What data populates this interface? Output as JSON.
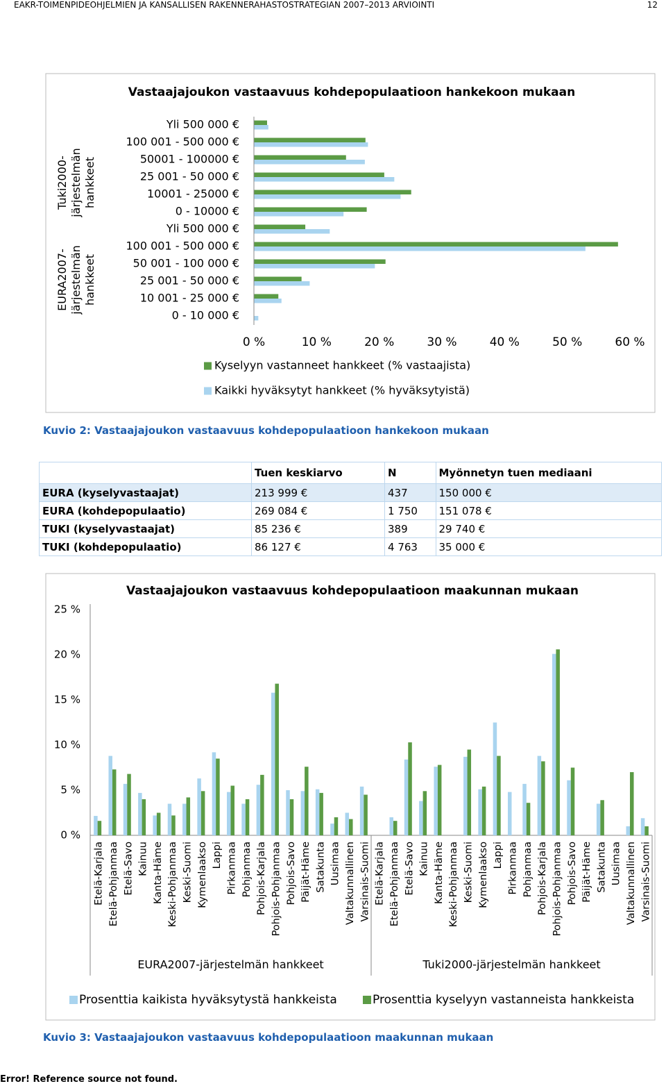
{
  "header": {
    "title": "EAKR-TOIMENPIDEOHJELMIEN JA KANSALLISEN RAKENNERAHASTOSTRATEGIAN 2007–2013 ARVIOINTI",
    "page": "12"
  },
  "chart_data": [
    {
      "type": "bar",
      "orientation": "horizontal",
      "title": "Vastaajajoukon vastaavuus kohdepopulaatioon hankekoon mukaan",
      "groups": [
        {
          "name": "Tuki2000-järjestelmän hankkeet",
          "categories": [
            "Yli 500 000 €",
            "100 001 - 500 000 €",
            "50001 - 100000 €",
            "25 001 - 50 000 €",
            "10001 - 25000 €",
            "0 - 10000 €"
          ]
        },
        {
          "name": "EURA2007-järjestelmän hankkeet",
          "categories": [
            "Yli 500 000 €",
            "100 001 - 500 000 €",
            "50 001 - 100 000 €",
            "25 001 - 50 000 €",
            "10 001 - 25 000 €",
            "0 - 10 000 €"
          ]
        }
      ],
      "series": [
        {
          "name": "Kyselyyn vastanneet hankkeet (% vastaajista)",
          "color": "#5b9b45",
          "values": [
            2.1,
            17.8,
            14.7,
            20.8,
            25.1,
            18.0,
            8.2,
            58.1,
            21.0,
            7.6,
            3.9,
            0
          ]
        },
        {
          "name": "Kaikki hyväksytyt hankkeet (% hyväksytyistä)",
          "color": "#a9d4ef",
          "values": [
            2.3,
            18.2,
            17.7,
            22.4,
            23.4,
            14.3,
            12.1,
            52.9,
            19.3,
            8.9,
            4.4,
            0.7
          ]
        }
      ],
      "xlim": [
        0,
        60
      ],
      "xticks": [
        {
          "value": 0,
          "label": "0 %"
        },
        {
          "value": 10,
          "label": "10 %"
        },
        {
          "value": 20,
          "label": "20 %"
        },
        {
          "value": 30,
          "label": "30 %"
        },
        {
          "value": 40,
          "label": "40 %"
        },
        {
          "value": 50,
          "label": "50 %"
        },
        {
          "value": 60,
          "label": "60 %"
        }
      ],
      "legend": "bottom"
    },
    {
      "type": "bar",
      "title": "Vastaajajoukon vastaavuus kohdepopulaatioon maakunnan mukaan",
      "groups": [
        {
          "name": "EURA2007-järjestelmän hankkeet",
          "categories": [
            "Etelä-Karjala",
            "Etelä-Pohjanmaa",
            "Etelä-Savo",
            "Kainuu",
            "Kanta-Häme",
            "Keski-Pohjanmaa",
            "Keski-Suomi",
            "Kymenlaakso",
            "Lappi",
            "Pirkanmaa",
            "Pohjanmaa",
            "Pohjois-Karjala",
            "Pohjois-Pohjanmaa",
            "Pohjois-Savo",
            "Päijät-Häme",
            "Satakunta",
            "Uusimaa",
            "Valtakunnallinen",
            "Varsinais-Suomi"
          ]
        },
        {
          "name": "Tuki2000-järjestelmän hankkeet",
          "categories": [
            "Etelä-Karjala",
            "Etelä-Pohjanmaa",
            "Etelä-Savo",
            "Kainuu",
            "Kanta-Häme",
            "Keski-Pohjanmaa",
            "Keski-Suomi",
            "Kymenlaakso",
            "Lappi",
            "Pirkanmaa",
            "Pohjanmaa",
            "Pohjois-Karjala",
            "Pohjois-Pohjanmaa",
            "Pohjois-Savo",
            "Päijät-Häme",
            "Satakunta",
            "Uusimaa",
            "Valtakunnallinen",
            "Varsinais-Suomi"
          ]
        }
      ],
      "series": [
        {
          "name": "Prosenttia kaikista hyväksytystä hankkeista",
          "color": "#a9d4ef",
          "values": [
            2.15,
            8.8,
            5.7,
            4.7,
            2.2,
            3.5,
            3.5,
            6.3,
            9.2,
            4.8,
            3.5,
            5.6,
            15.8,
            5.0,
            4.9,
            5.1,
            1.3,
            2.5,
            5.4,
            null,
            2.0,
            8.4,
            3.8,
            7.6,
            null,
            8.7,
            5.1,
            12.5,
            4.8,
            5.7,
            8.8,
            20.1,
            6.1,
            null,
            3.5,
            null,
            1.0,
            1.9
          ]
        },
        {
          "name": "Prosenttia kyselyyn vastanneista hankkeista",
          "color": "#5b9b45",
          "values": [
            1.6,
            7.3,
            6.8,
            4.0,
            2.5,
            2.2,
            4.2,
            4.9,
            8.5,
            5.5,
            4.0,
            6.7,
            16.8,
            4.0,
            7.6,
            4.7,
            2.0,
            1.8,
            4.5,
            null,
            1.6,
            10.3,
            4.9,
            7.8,
            null,
            9.5,
            5.4,
            8.8,
            null,
            3.6,
            8.2,
            20.6,
            7.5,
            null,
            3.9,
            null,
            7.0,
            1.0
          ]
        }
      ],
      "ylim": [
        0,
        25
      ],
      "yticks": [
        {
          "value": 0,
          "label": "0 %"
        },
        {
          "value": 5,
          "label": "5 %"
        },
        {
          "value": 10,
          "label": "10 %"
        },
        {
          "value": 15,
          "label": "15 %"
        },
        {
          "value": 20,
          "label": "20 %"
        },
        {
          "value": 25,
          "label": "25 %"
        }
      ],
      "legend": "bottom"
    }
  ],
  "captions": [
    "Kuvio 2: Vastaajajoukon vastaavuus kohdepopulaatioon hankekoon mukaan",
    "Kuvio 3: Vastaajajoukon vastaavuus kohdepopulaatioon maakunnan mukaan"
  ],
  "table": {
    "columns": [
      "Tuen keskiarvo",
      "N",
      "Myönnetyn tuen mediaani"
    ],
    "rows": [
      [
        "EURA (kyselyvastaajat)",
        "213 999 €",
        "437",
        "150 000 €"
      ],
      [
        "EURA (kohdepopulaatio)",
        "269 084 €",
        "1 750",
        "151 078 €"
      ],
      [
        "TUKI (kyselyvastaajat)",
        "85 236 €",
        "389",
        "29 740 €"
      ],
      [
        "TUKI (kohdepopulaatio)",
        "86 127 €",
        "4 763",
        "35 000 €"
      ]
    ]
  },
  "footer": "Error! Reference source not found."
}
